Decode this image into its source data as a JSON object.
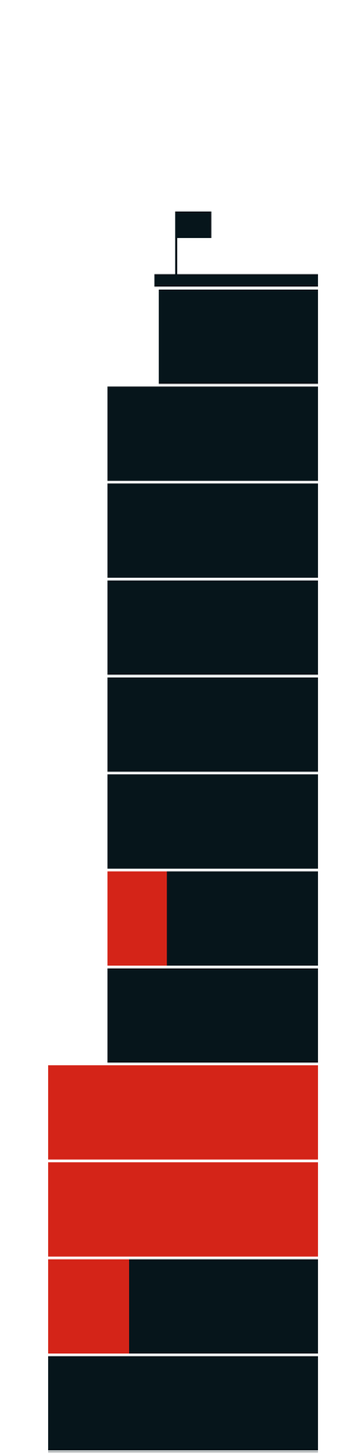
{
  "chart_data": {
    "type": "bar",
    "orientation": "horizontal",
    "stacked": true,
    "tick_labels": false,
    "grid": false,
    "categories": [
      null,
      null,
      null,
      null,
      null,
      null,
      null,
      null,
      null,
      null,
      null,
      null
    ],
    "xlim": [
      0,
      100
    ],
    "series": [
      {
        "color": "#06151b",
        "values": [
          59,
          78,
          78,
          78,
          78,
          78,
          56,
          78,
          0,
          0,
          70,
          100
        ]
      },
      {
        "color": "#d42418",
        "values": [
          0,
          0,
          0,
          0,
          0,
          0,
          22,
          0,
          100,
          100,
          30,
          0
        ]
      }
    ]
  }
}
